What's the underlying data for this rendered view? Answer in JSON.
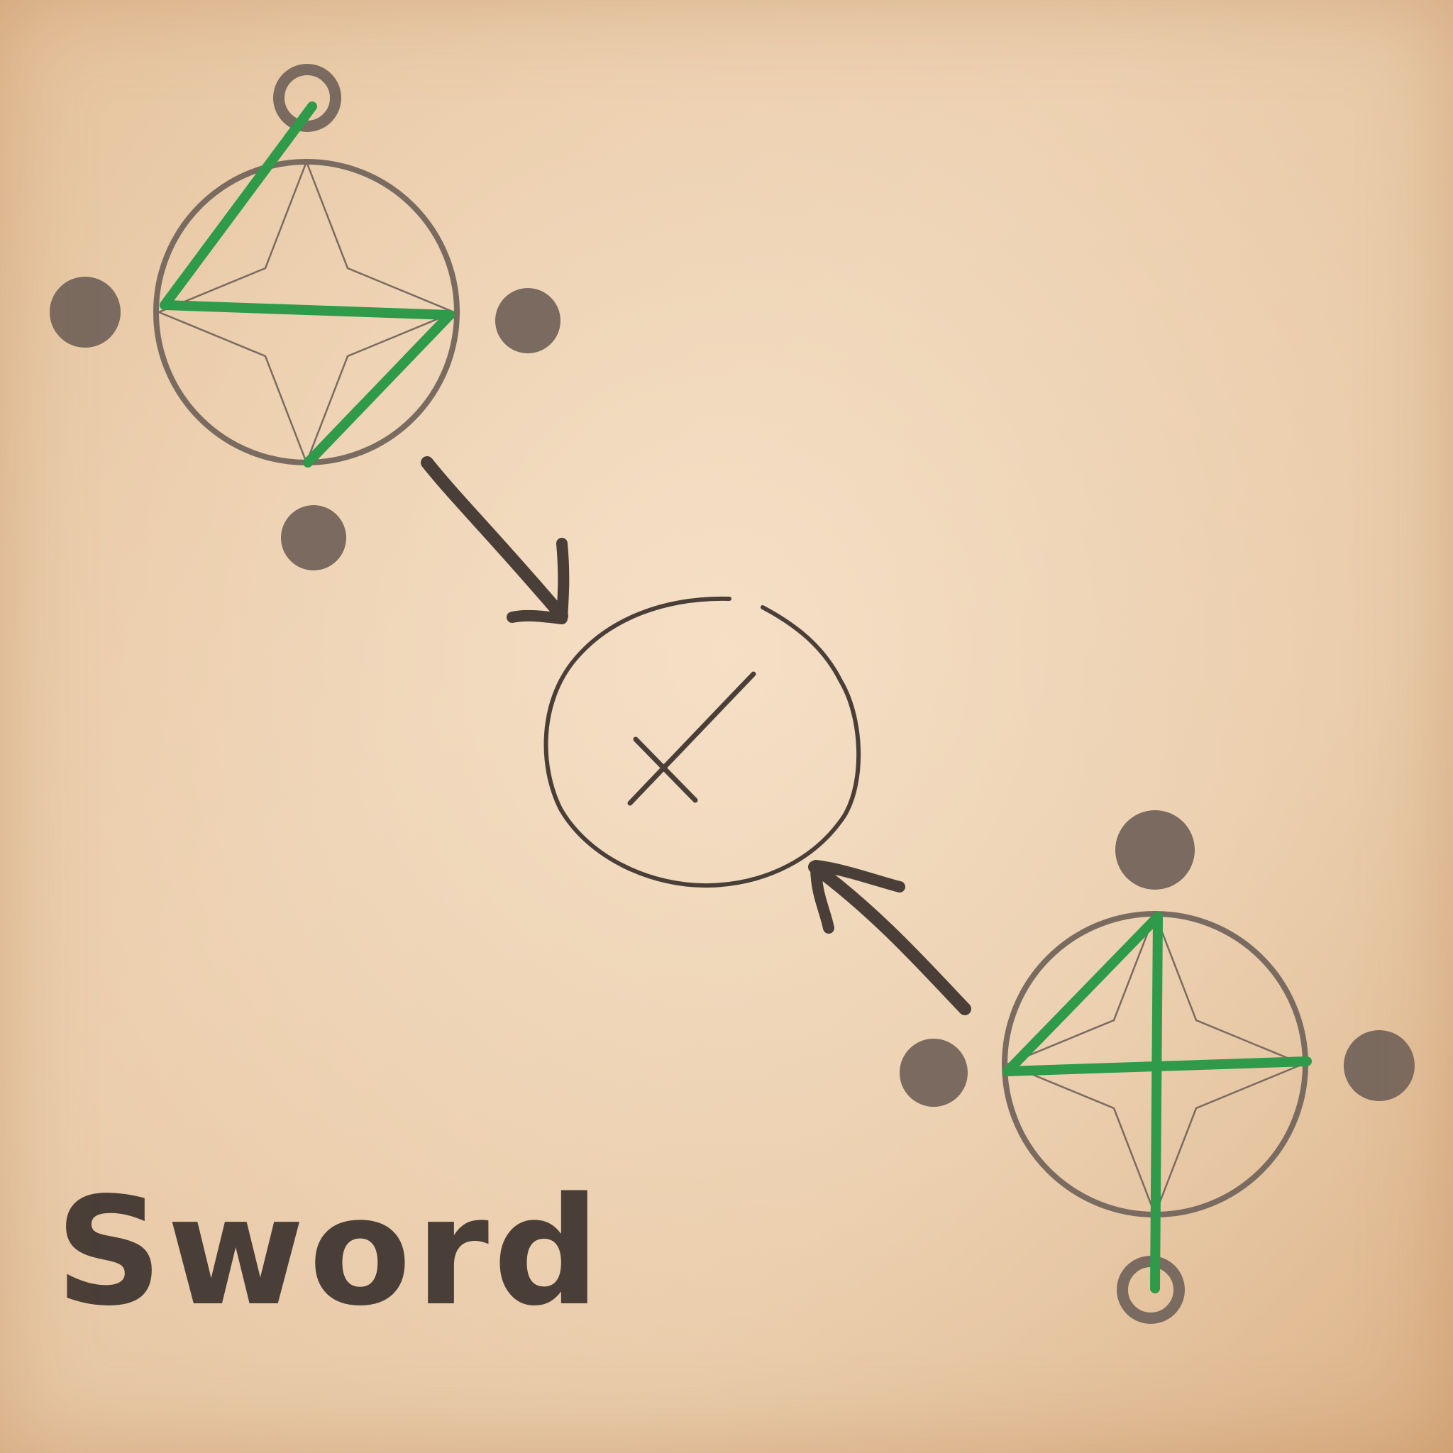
{
  "diagram": {
    "caption": "Sword",
    "colors": {
      "paper": "#eacfb0",
      "ink": "#4a3f38",
      "stroke_path": "#2e9a4a",
      "ring": "#7a6b60",
      "dot": "#7a6a5f"
    },
    "icons": {
      "start_marker": "ring-icon",
      "result_symbol": "sword-icon",
      "arrow": "arrow-icon"
    }
  }
}
